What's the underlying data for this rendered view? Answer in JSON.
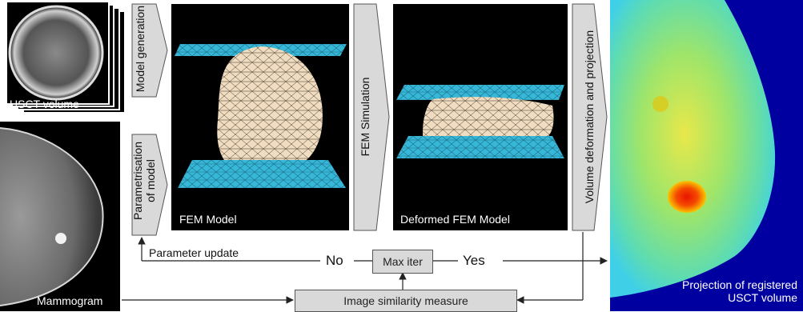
{
  "labels": {
    "usct_volume": "USCT volume",
    "mammogram": "Mammogram",
    "model_generation": "Model generation",
    "parametrisation": "Parametrisation\nof model",
    "fem_model": "FEM Model",
    "fem_simulation": "FEM Simulation",
    "deformed_fem_model": "Deformed FEM Model",
    "volume_deformation": "Volume deformation and projection",
    "projection_line1": "Projection of registered",
    "projection_line2": "USCT volume",
    "parameter_update": "Parameter update",
    "no": "No",
    "max_iter": "Max iter",
    "yes": "Yes",
    "image_similarity": "Image similarity measure"
  },
  "colors": {
    "mesh_plate": "#37b7d8",
    "breast_mesh": "#f0dcc0",
    "arrow_fill": "#d9d9d9",
    "heat_blue": "#0000a0",
    "heat_cyan": "#3fd0e8",
    "heat_green": "#9ee56a",
    "heat_red": "#e81400"
  }
}
